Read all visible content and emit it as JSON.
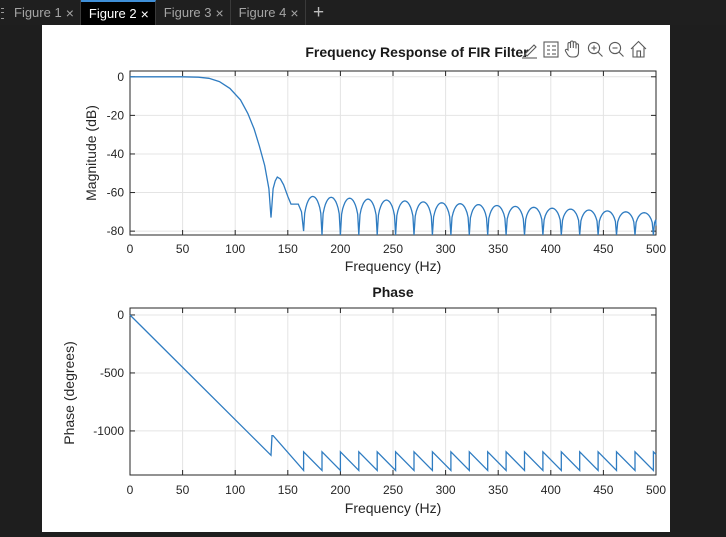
{
  "tabs": [
    {
      "label": "Figure 1",
      "active": false
    },
    {
      "label": "Figure 2",
      "active": true
    },
    {
      "label": "Figure 3",
      "active": false
    },
    {
      "label": "Figure 4",
      "active": false
    }
  ],
  "tab_close_glyph": "×",
  "add_tab_glyph": "+",
  "toolbar_icons": [
    "brush-icon",
    "legend-icon",
    "pan-icon",
    "zoom-in-icon",
    "zoom-out-icon",
    "home-icon"
  ],
  "colors": {
    "line": "#2f7cc1",
    "background": "#ffffff",
    "grid": "#e4e4e4",
    "active_tab": "#000000"
  },
  "chart_data": [
    {
      "type": "line",
      "title": "Frequency Response of FIR Filter",
      "xlabel": "Frequency (Hz)",
      "ylabel": "Magnitude (dB)",
      "xlim": [
        0,
        500
      ],
      "ylim": [
        -82,
        3
      ],
      "grid": true,
      "xticks": [
        0,
        50,
        100,
        150,
        200,
        250,
        300,
        350,
        400,
        450,
        500
      ],
      "yticks": [
        0,
        -20,
        -40,
        -60,
        -80
      ],
      "x": [
        0,
        50,
        65,
        75,
        85,
        95,
        105,
        112,
        118,
        123,
        128,
        132,
        134,
        135,
        136,
        138,
        140,
        143,
        146,
        150,
        153,
        157,
        160,
        163,
        165
      ],
      "y": [
        0,
        0,
        -0.2,
        -0.8,
        -2.5,
        -6,
        -12,
        -19,
        -27,
        -36,
        -46,
        -58,
        -73,
        -66,
        -58,
        -54,
        -52,
        -53,
        -56,
        -62,
        -66,
        -66,
        -66,
        -70,
        -80
      ],
      "sidelobes": {
        "start": 165,
        "spacing": 17.5,
        "peak_db_start": -62,
        "peak_db_end": -71,
        "floor_db": -82
      }
    },
    {
      "type": "line",
      "title": "Phase",
      "xlabel": "Frequency (Hz)",
      "ylabel": "Phase (degrees)",
      "xlim": [
        0,
        500
      ],
      "ylim": [
        -1380,
        60
      ],
      "grid": true,
      "xticks": [
        0,
        50,
        100,
        150,
        200,
        250,
        300,
        350,
        400,
        450,
        500
      ],
      "yticks": [
        0,
        -500,
        -1000
      ],
      "x": [
        0,
        134,
        135,
        136,
        165
      ],
      "y": [
        0,
        -1210,
        -1040,
        -1040,
        -1340
      ],
      "sawtooth": {
        "start": 165,
        "spacing": 17.5,
        "top": -1180,
        "bottom": -1340
      }
    }
  ]
}
